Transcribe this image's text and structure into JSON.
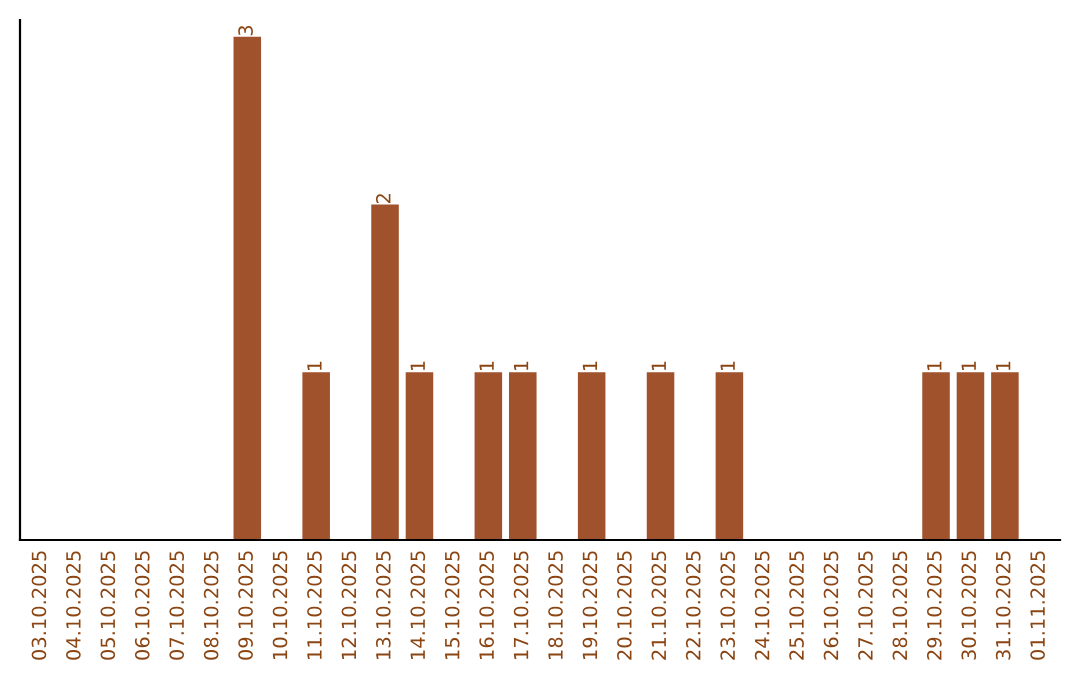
{
  "chart_data": {
    "type": "bar",
    "categories": [
      "03.10.2025",
      "04.10.2025",
      "05.10.2025",
      "06.10.2025",
      "07.10.2025",
      "08.10.2025",
      "09.10.2025",
      "10.10.2025",
      "11.10.2025",
      "12.10.2025",
      "13.10.2025",
      "14.10.2025",
      "15.10.2025",
      "16.10.2025",
      "17.10.2025",
      "18.10.2025",
      "19.10.2025",
      "20.10.2025",
      "21.10.2025",
      "22.10.2025",
      "23.10.2025",
      "24.10.2025",
      "25.10.2025",
      "26.10.2025",
      "27.10.2025",
      "28.10.2025",
      "29.10.2025",
      "30.10.2025",
      "31.10.2025",
      "01.11.2025"
    ],
    "values": [
      0,
      0,
      0,
      0,
      0,
      0,
      3,
      0,
      1,
      0,
      2,
      1,
      0,
      1,
      1,
      0,
      1,
      0,
      1,
      0,
      1,
      0,
      0,
      0,
      0,
      0,
      1,
      1,
      1,
      0
    ],
    "value_labels": [
      null,
      null,
      null,
      null,
      null,
      null,
      "3",
      null,
      "1",
      null,
      "2",
      "1",
      null,
      "1",
      "1",
      null,
      "1",
      null,
      "1",
      null,
      "1",
      null,
      null,
      null,
      null,
      null,
      "1",
      "1",
      "1",
      null
    ],
    "color": "#a0522d",
    "ylim": [
      0,
      3.1
    ],
    "tick_labels": "x",
    "grid": false
  }
}
